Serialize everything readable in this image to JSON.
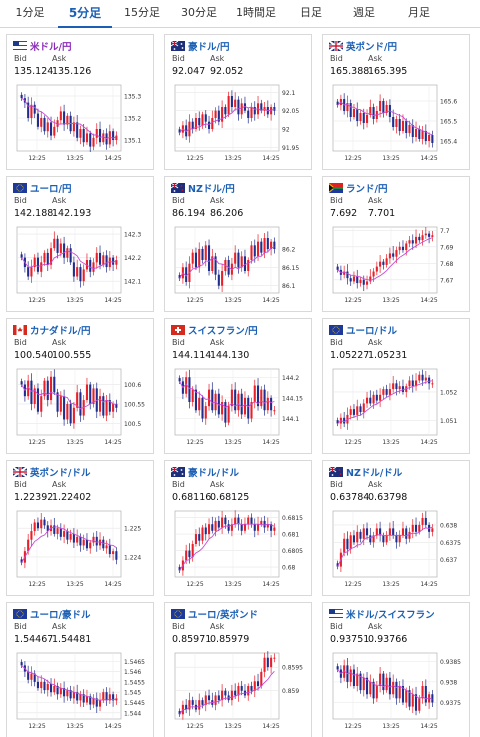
{
  "tabs": [
    {
      "label": "1分足",
      "active": false
    },
    {
      "label": "5分足",
      "active": true
    },
    {
      "label": "15分足",
      "active": false
    },
    {
      "label": "30分足",
      "active": false
    },
    {
      "label": "1時間足",
      "active": false
    },
    {
      "label": "日足",
      "active": false
    },
    {
      "label": "週足",
      "active": false
    },
    {
      "label": "月足",
      "active": false
    }
  ],
  "labels": {
    "bid": "Bid",
    "ask": "Ask"
  },
  "colors": {
    "up": "#e8202a",
    "down": "#1f2d8c",
    "ma": "#c64bd6",
    "accent": "#1a5fb4"
  },
  "pairs": [
    {
      "name": "米ドル/円",
      "flag": "us-flag-icon",
      "bid": "135.124",
      "ask": "135.126",
      "title_color": "#8a2bb8",
      "chart_data": {
        "type": "candlestick",
        "ylim": [
          135.05,
          135.35
        ],
        "yticks": [
          "135.3",
          "135.2",
          "135.1"
        ],
        "xticks": [
          "12:25",
          "13:25",
          "14:25"
        ],
        "close": [
          135.29,
          135.27,
          135.2,
          135.26,
          135.22,
          135.16,
          135.2,
          135.14,
          135.18,
          135.12,
          135.16,
          135.19,
          135.23,
          135.17,
          135.21,
          135.14,
          135.18,
          135.11,
          135.15,
          135.09,
          135.13,
          135.07,
          135.11,
          135.15,
          135.09,
          135.13,
          135.08,
          135.14,
          135.1,
          135.12
        ]
      }
    },
    {
      "name": "豪ドル/円",
      "flag": "au-flag-icon",
      "bid": "92.047",
      "ask": "92.052",
      "title_color": "#1a5fb4",
      "chart_data": {
        "type": "candlestick",
        "ylim": [
          91.94,
          92.12
        ],
        "yticks": [
          "92.1",
          "92.05",
          "92",
          "91.95"
        ],
        "xticks": [
          "12:25",
          "13:25",
          "14:25"
        ],
        "close": [
          91.99,
          92.01,
          91.98,
          92.02,
          92.0,
          92.03,
          92.01,
          92.04,
          92.02,
          92.0,
          92.03,
          92.05,
          92.02,
          92.06,
          92.04,
          92.09,
          92.06,
          92.08,
          92.04,
          92.07,
          92.05,
          92.03,
          92.06,
          92.04,
          92.07,
          92.05,
          92.06,
          92.04,
          92.06,
          92.05
        ]
      }
    },
    {
      "name": "英ポンド/円",
      "flag": "uk-flag-icon",
      "bid": "165.388",
      "ask": "165.395",
      "title_color": "#1a5fb4",
      "chart_data": {
        "type": "candlestick",
        "ylim": [
          165.35,
          165.68
        ],
        "yticks": [
          "165.6",
          "165.5",
          "165.4"
        ],
        "xticks": [
          "12:25",
          "13:25",
          "14:25"
        ],
        "close": [
          165.58,
          165.61,
          165.55,
          165.59,
          165.52,
          165.56,
          165.5,
          165.54,
          165.49,
          165.53,
          165.57,
          165.51,
          165.55,
          165.6,
          165.54,
          165.58,
          165.52,
          165.47,
          165.51,
          165.45,
          165.5,
          165.44,
          165.48,
          165.42,
          165.46,
          165.41,
          165.45,
          165.4,
          165.43,
          165.39
        ]
      }
    },
    {
      "name": "ユーロ/円",
      "flag": "eu-flag-icon",
      "bid": "142.188",
      "ask": "142.193",
      "title_color": "#1a5fb4",
      "chart_data": {
        "type": "candlestick",
        "ylim": [
          142.05,
          142.33
        ],
        "yticks": [
          "142.3",
          "142.2",
          "142.1"
        ],
        "xticks": [
          "12:25",
          "13:25",
          "14:25"
        ],
        "close": [
          142.2,
          142.16,
          142.12,
          142.16,
          142.2,
          142.14,
          142.18,
          142.22,
          142.17,
          142.24,
          142.28,
          142.22,
          142.26,
          142.2,
          142.24,
          142.18,
          142.12,
          142.16,
          142.1,
          142.15,
          142.19,
          142.14,
          142.18,
          142.22,
          142.17,
          142.21,
          142.16,
          142.2,
          142.17,
          142.19
        ]
      }
    },
    {
      "name": "NZドル/円",
      "flag": "nz-flag-icon",
      "bid": "86.194",
      "ask": "86.206",
      "title_color": "#1a5fb4",
      "chart_data": {
        "type": "candlestick",
        "ylim": [
          86.08,
          86.26
        ],
        "yticks": [
          "86.2",
          "86.15",
          "86.1"
        ],
        "xticks": [
          "12:25",
          "13:25",
          "14:25"
        ],
        "close": [
          86.12,
          86.15,
          86.11,
          86.16,
          86.19,
          86.15,
          86.2,
          86.17,
          86.21,
          86.14,
          86.18,
          86.13,
          86.1,
          86.14,
          86.17,
          86.13,
          86.16,
          86.19,
          86.15,
          86.18,
          86.14,
          86.17,
          86.21,
          86.18,
          86.22,
          86.19,
          86.23,
          86.2,
          86.22,
          86.2
        ]
      }
    },
    {
      "name": "ランド/円",
      "flag": "za-flag-icon",
      "bid": "7.692",
      "ask": "7.701",
      "title_color": "#1a5fb4",
      "chart_data": {
        "type": "candlestick",
        "ylim": [
          7.662,
          7.702
        ],
        "yticks": [
          "7.7",
          "7.69",
          "7.68",
          "7.67"
        ],
        "xticks": [
          "12:25",
          "13:25",
          "14:25"
        ],
        "close": [
          7.676,
          7.673,
          7.675,
          7.671,
          7.669,
          7.672,
          7.668,
          7.67,
          7.667,
          7.669,
          7.672,
          7.675,
          7.678,
          7.681,
          7.679,
          7.683,
          7.686,
          7.684,
          7.688,
          7.69,
          7.688,
          7.692,
          7.694,
          7.692,
          7.696,
          7.694,
          7.697,
          7.698,
          7.696,
          7.697
        ]
      }
    },
    {
      "name": "カナダドル/円",
      "flag": "ca-flag-icon",
      "bid": "100.540",
      "ask": "100.555",
      "title_color": "#1a5fb4",
      "chart_data": {
        "type": "candlestick",
        "ylim": [
          100.47,
          100.64
        ],
        "yticks": [
          "100.6",
          "100.55",
          "100.5"
        ],
        "xticks": [
          "12:25",
          "13:25",
          "14:25"
        ],
        "close": [
          100.6,
          100.57,
          100.61,
          100.55,
          100.59,
          100.53,
          100.57,
          100.61,
          100.56,
          100.62,
          100.58,
          100.53,
          100.57,
          100.51,
          100.55,
          100.5,
          100.54,
          100.58,
          100.52,
          100.56,
          100.6,
          100.55,
          100.59,
          100.53,
          100.57,
          100.52,
          100.56,
          100.53,
          100.55,
          100.54
        ]
      }
    },
    {
      "name": "スイスフラン/円",
      "flag": "ch-flag-icon",
      "bid": "144.114",
      "ask": "144.130",
      "title_color": "#1a5fb4",
      "chart_data": {
        "type": "candlestick",
        "ylim": [
          144.06,
          144.22
        ],
        "yticks": [
          "144.2",
          "144.15",
          "144.1"
        ],
        "xticks": [
          "12:25",
          "13:25",
          "14:25"
        ],
        "close": [
          144.19,
          144.16,
          144.2,
          144.14,
          144.17,
          144.12,
          144.15,
          144.1,
          144.13,
          144.17,
          144.12,
          144.16,
          144.11,
          144.14,
          144.09,
          144.13,
          144.17,
          144.12,
          144.16,
          144.11,
          144.15,
          144.1,
          144.14,
          144.18,
          144.13,
          144.17,
          144.12,
          144.15,
          144.12,
          144.12
        ]
      }
    },
    {
      "name": "ユーロ/ドル",
      "flag": "eu-flag-icon",
      "bid": "1.05227",
      "ask": "1.05231",
      "title_color": "#1a5fb4",
      "chart_data": {
        "type": "candlestick",
        "ylim": [
          1.0505,
          1.0528
        ],
        "yticks": [
          "1.052",
          "1.051"
        ],
        "xticks": [
          "12:25",
          "13:25",
          "14:25"
        ],
        "close": [
          1.0509,
          1.0511,
          1.0509,
          1.0512,
          1.0514,
          1.0512,
          1.0515,
          1.0513,
          1.0516,
          1.0518,
          1.0516,
          1.0519,
          1.0517,
          1.0519,
          1.0521,
          1.0519,
          1.0521,
          1.0523,
          1.0521,
          1.0522,
          1.052,
          1.0522,
          1.0524,
          1.0522,
          1.0524,
          1.0526,
          1.0524,
          1.0525,
          1.0523,
          1.0523
        ]
      }
    },
    {
      "name": "英ポンド/ドル",
      "flag": "uk-flag-icon",
      "bid": "1.22392",
      "ask": "1.22402",
      "title_color": "#1a5fb4",
      "chart_data": {
        "type": "candlestick",
        "ylim": [
          1.2233,
          1.2256
        ],
        "yticks": [
          "1.225",
          "1.224"
        ],
        "xticks": [
          "12:25",
          "13:25",
          "14:25"
        ],
        "close": [
          1.2238,
          1.2242,
          1.2246,
          1.2249,
          1.2252,
          1.225,
          1.2253,
          1.2251,
          1.2249,
          1.2251,
          1.2248,
          1.225,
          1.2247,
          1.2249,
          1.2246,
          1.2248,
          1.2245,
          1.2247,
          1.2244,
          1.2246,
          1.2243,
          1.2245,
          1.2247,
          1.2244,
          1.2246,
          1.2243,
          1.2244,
          1.2241,
          1.2242,
          1.2239
        ]
      }
    },
    {
      "name": "豪ドル/ドル",
      "flag": "au-flag-icon",
      "bid": "0.68116",
      "ask": "0.68125",
      "title_color": "#1a5fb4",
      "chart_data": {
        "type": "candlestick",
        "ylim": [
          0.6797,
          0.6817
        ],
        "yticks": [
          "0.6815",
          "0.681",
          "0.6805",
          "0.68"
        ],
        "xticks": [
          "12:25",
          "13:25",
          "14:25"
        ],
        "close": [
          0.6799,
          0.6802,
          0.6805,
          0.6803,
          0.6807,
          0.681,
          0.6808,
          0.6812,
          0.681,
          0.6813,
          0.6811,
          0.6814,
          0.6812,
          0.6815,
          0.6813,
          0.6811,
          0.6813,
          0.6815,
          0.6813,
          0.6811,
          0.6813,
          0.6815,
          0.6813,
          0.6811,
          0.6813,
          0.6814,
          0.6812,
          0.6813,
          0.6811,
          0.6812
        ]
      }
    },
    {
      "name": "NZドル/ドル",
      "flag": "nz-flag-icon",
      "bid": "0.63784",
      "ask": "0.63798",
      "title_color": "#1a5fb4",
      "chart_data": {
        "type": "candlestick",
        "ylim": [
          0.6365,
          0.6384
        ],
        "yticks": [
          "0.638",
          "0.6375",
          "0.637"
        ],
        "xticks": [
          "12:25",
          "13:25",
          "14:25"
        ],
        "close": [
          0.6368,
          0.6372,
          0.6376,
          0.6373,
          0.6377,
          0.6375,
          0.6378,
          0.6376,
          0.6379,
          0.6377,
          0.6375,
          0.6377,
          0.6379,
          0.6377,
          0.6375,
          0.6377,
          0.6379,
          0.6377,
          0.6375,
          0.6377,
          0.6379,
          0.6376,
          0.6378,
          0.638,
          0.6378,
          0.638,
          0.6382,
          0.638,
          0.6378,
          0.6379
        ]
      }
    },
    {
      "name": "ユーロ/豪ドル",
      "flag": "eu-flag-icon",
      "bid": "1.54467",
      "ask": "1.54481",
      "title_color": "#1a5fb4",
      "chart_data": {
        "type": "candlestick",
        "ylim": [
          1.5437,
          1.5469
        ],
        "yticks": [
          "1.5465",
          "1.546",
          "1.5455",
          "1.545",
          "1.5445",
          "1.544"
        ],
        "xticks": [
          "12:25",
          "13:25",
          "14:25"
        ],
        "close": [
          1.5463,
          1.546,
          1.5456,
          1.5459,
          1.5455,
          1.5452,
          1.5455,
          1.5451,
          1.5454,
          1.545,
          1.5453,
          1.5449,
          1.5452,
          1.5448,
          1.5451,
          1.5447,
          1.545,
          1.5446,
          1.5449,
          1.5445,
          1.5448,
          1.5444,
          1.5447,
          1.5443,
          1.5446,
          1.545,
          1.5446,
          1.5449,
          1.5446,
          1.5447
        ]
      }
    },
    {
      "name": "ユーロ/英ポンド",
      "flag": "eu-flag-icon",
      "bid": "0.85971",
      "ask": "0.85979",
      "title_color": "#1a5fb4",
      "chart_data": {
        "type": "candlestick",
        "ylim": [
          0.8584,
          0.8598
        ],
        "yticks": [
          "0.8595",
          "0.859"
        ],
        "xticks": [
          "12:25",
          "13:25",
          "14:25"
        ],
        "close": [
          0.8585,
          0.8587,
          0.8586,
          0.8588,
          0.8587,
          0.8586,
          0.8588,
          0.8587,
          0.8589,
          0.8588,
          0.8587,
          0.8589,
          0.8588,
          0.859,
          0.8589,
          0.8588,
          0.859,
          0.8589,
          0.8591,
          0.859,
          0.8589,
          0.8591,
          0.859,
          0.8592,
          0.8591,
          0.8594,
          0.8597,
          0.8595,
          0.8597,
          0.8597
        ]
      }
    },
    {
      "name": "米ドル/スイスフラン",
      "flag": "us-flag-icon",
      "bid": "0.93751",
      "ask": "0.93766",
      "title_color": "#1a5fb4",
      "chart_data": {
        "type": "candlestick",
        "ylim": [
          0.9371,
          0.9387
        ],
        "yticks": [
          "0.9385",
          "0.938",
          "0.9375"
        ],
        "xticks": [
          "12:25",
          "13:25",
          "14:25"
        ],
        "close": [
          0.9383,
          0.9381,
          0.9384,
          0.938,
          0.9383,
          0.9379,
          0.9382,
          0.9378,
          0.9381,
          0.9377,
          0.938,
          0.9376,
          0.9379,
          0.9382,
          0.9378,
          0.9381,
          0.9377,
          0.938,
          0.9376,
          0.9379,
          0.9375,
          0.9378,
          0.9374,
          0.9377,
          0.9373,
          0.9376,
          0.9379,
          0.9375,
          0.9377,
          0.9375
        ]
      }
    }
  ]
}
